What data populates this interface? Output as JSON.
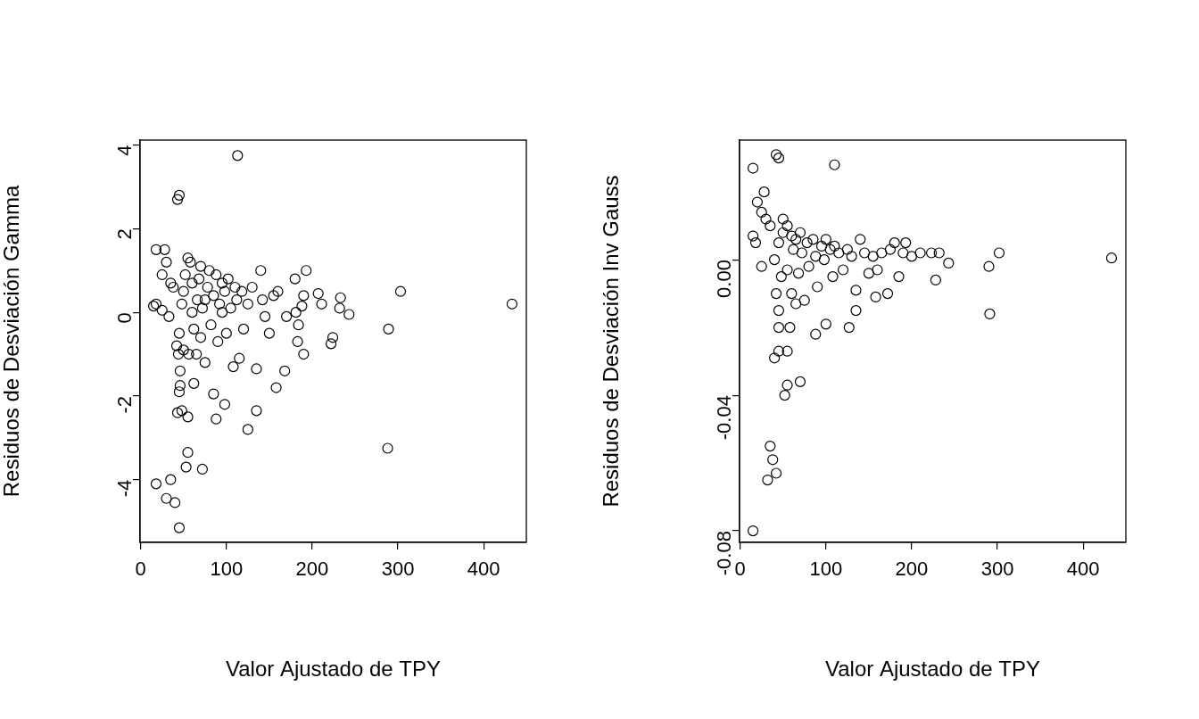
{
  "chart_data": [
    {
      "type": "scatter",
      "x_label": "Valor Ajustado de TPY",
      "y_label": "Residuos de Desviación Gamma",
      "color": "#000000",
      "marker": "open_circle",
      "grid": false,
      "xlim": [
        -0.7,
        449.7
      ],
      "xticks": [
        0,
        100,
        200,
        300,
        400
      ],
      "ylim": [
        -5.5,
        4.12
      ],
      "yticks": [
        -4,
        -2,
        0,
        2,
        4
      ],
      "x": [
        15,
        18,
        18,
        28,
        25,
        25,
        30,
        33,
        35,
        38,
        18,
        30,
        35,
        40,
        45,
        43,
        45,
        113,
        53,
        55,
        72,
        43,
        48,
        55,
        45,
        46,
        62,
        42,
        44,
        46,
        50,
        45,
        48,
        50,
        52,
        55,
        58,
        60,
        62,
        65,
        66,
        68,
        70,
        72,
        75,
        78,
        80,
        82,
        85,
        85,
        88,
        88,
        90,
        92,
        95,
        98,
        98,
        100,
        102,
        105,
        108,
        110,
        112,
        115,
        118,
        120,
        125,
        125,
        130,
        135,
        135,
        140,
        142,
        145,
        150,
        155,
        158,
        160,
        168,
        170,
        180,
        181,
        183,
        184,
        188,
        190,
        190,
        193,
        207,
        211,
        222,
        224,
        232,
        233,
        243,
        288,
        289,
        303,
        433,
        60,
        75,
        95,
        56,
        70
      ],
      "values": [
        0.15,
        0.2,
        1.5,
        1.5,
        0.05,
        0.9,
        1.2,
        -0.1,
        0.7,
        0.6,
        -4.1,
        -4.45,
        -4.0,
        -4.55,
        -5.15,
        2.7,
        2.8,
        3.75,
        -3.7,
        -3.35,
        -3.75,
        -2.4,
        -2.35,
        -2.5,
        -1.9,
        -1.75,
        -1.7,
        -0.8,
        -1.0,
        -1.4,
        -0.9,
        -0.5,
        0.2,
        0.5,
        0.9,
        1.3,
        1.2,
        0.7,
        -0.4,
        -1.0,
        0.3,
        0.8,
        1.1,
        0.1,
        -1.2,
        0.6,
        1.0,
        -0.3,
        -1.95,
        0.4,
        -2.55,
        0.9,
        -0.7,
        0.2,
        0.7,
        -2.2,
        0.5,
        -0.5,
        0.8,
        0.1,
        -1.3,
        0.6,
        0.3,
        -1.1,
        0.5,
        -0.4,
        -2.8,
        0.2,
        0.6,
        -2.35,
        -1.35,
        1.0,
        0.3,
        -0.1,
        -0.5,
        0.4,
        -1.8,
        0.5,
        -1.4,
        -0.1,
        0.8,
        0.0,
        -0.7,
        -0.3,
        0.15,
        0.4,
        -1.0,
        1.0,
        0.45,
        0.2,
        -0.75,
        -0.6,
        0.1,
        0.35,
        -0.05,
        -3.25,
        -0.4,
        0.5,
        0.2,
        0.0,
        0.3,
        0.0,
        -1.0,
        -0.6
      ]
    },
    {
      "type": "scatter",
      "x_label": "Valor Ajustado de TPY",
      "y_label": "Residuos de Desviación Inv Gauss",
      "color": "#000000",
      "marker": "open_circle",
      "grid": false,
      "xlim": [
        -0.7,
        449.7
      ],
      "xticks": [
        0,
        100,
        200,
        300,
        400
      ],
      "ylim": [
        -0.0834,
        0.0353
      ],
      "yticks": [
        {
          "value": -0.08,
          "label": "-0.08"
        },
        {
          "value": -0.04,
          "label": "-0.04"
        },
        {
          "value": 0,
          "label": "0.00"
        }
      ],
      "x": [
        15,
        32,
        35,
        38,
        42,
        15,
        42,
        45,
        110,
        15,
        18,
        25,
        28,
        20,
        25,
        30,
        35,
        52,
        55,
        55,
        45,
        40,
        70,
        88,
        100,
        127,
        135,
        158,
        172,
        228,
        290,
        291,
        302,
        433,
        243,
        232,
        223,
        210,
        193,
        190,
        180,
        175,
        45,
        45,
        42,
        48,
        45,
        50,
        50,
        55,
        55,
        60,
        60,
        62,
        65,
        68,
        70,
        72,
        75,
        78,
        80,
        85,
        88,
        90,
        95,
        98,
        100,
        105,
        108,
        110,
        115,
        120,
        125,
        130,
        135,
        140,
        145,
        150,
        155,
        160,
        165,
        185,
        200,
        40,
        58,
        65
      ],
      "values": [
        -0.08,
        -0.065,
        -0.055,
        -0.059,
        -0.063,
        0.027,
        0.031,
        0.03,
        0.028,
        0.007,
        0.005,
        -0.002,
        0.02,
        0.017,
        0.014,
        0.012,
        0.01,
        -0.04,
        -0.037,
        -0.027,
        -0.027,
        -0.029,
        -0.036,
        -0.022,
        -0.019,
        -0.02,
        -0.015,
        -0.011,
        -0.01,
        -0.006,
        -0.002,
        -0.016,
        0.002,
        0.0005,
        -0.001,
        0.002,
        0.002,
        0.002,
        0.005,
        0.002,
        0.005,
        0.003,
        -0.02,
        -0.015,
        -0.01,
        -0.005,
        0.005,
        0.012,
        0.008,
        0.01,
        -0.003,
        0.007,
        -0.01,
        0.003,
        0.006,
        -0.004,
        0.008,
        0.002,
        -0.012,
        0.005,
        -0.002,
        0.006,
        0.001,
        -0.008,
        0.004,
        0.0,
        0.006,
        0.003,
        -0.005,
        0.004,
        0.002,
        -0.003,
        0.003,
        0.001,
        -0.009,
        0.006,
        0.002,
        -0.004,
        0.001,
        -0.003,
        0.002,
        -0.005,
        0.001,
        0.0,
        -0.02,
        -0.013
      ]
    }
  ]
}
